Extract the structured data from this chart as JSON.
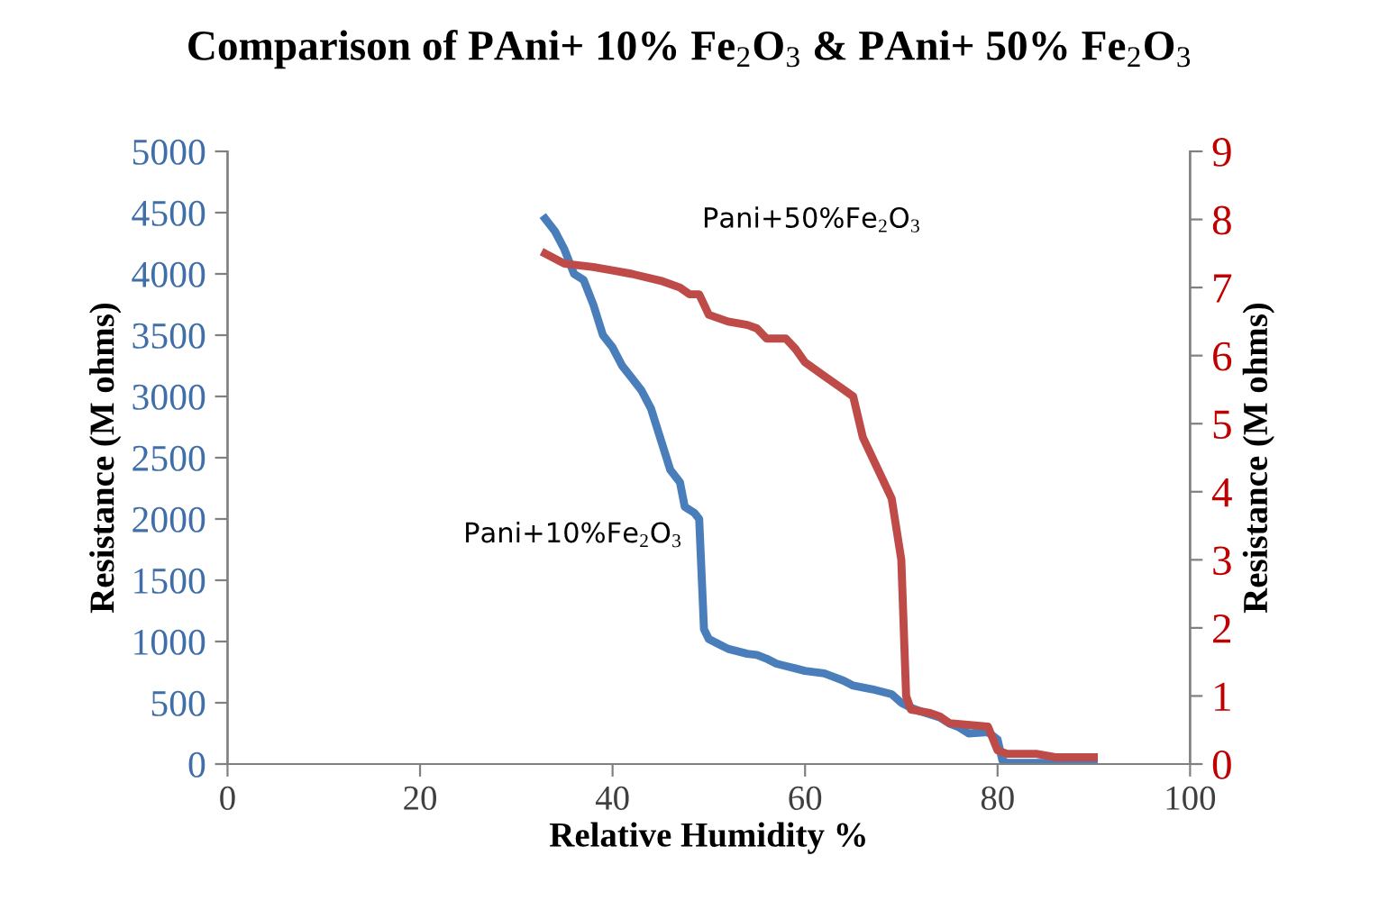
{
  "chart_data": {
    "type": "line",
    "title": "Comparison of PAni+ 10% Fe$_{2}$O$_{3}$ & PAni+ 50% Fe$_{2}$O$_{3}$",
    "xlabel": "Relative Humidity %",
    "ylabel": "Resistance (M ohms)",
    "y2label": "Resistance (M ohms)",
    "xlim": [
      0,
      100
    ],
    "xticks": [
      0,
      20,
      40,
      60,
      80,
      100
    ],
    "ylim": [
      0,
      5000
    ],
    "yticks": [
      0,
      500,
      1000,
      1500,
      2000,
      2500,
      3000,
      3500,
      4000,
      4500,
      5000
    ],
    "y2lim": [
      0,
      9
    ],
    "y2ticks": [
      0,
      1,
      2,
      3,
      4,
      5,
      6,
      7,
      8,
      9
    ],
    "grid": false,
    "legend": false,
    "marker": "none",
    "line_style": "solid",
    "series": [
      {
        "name": "Pani+10%Fe$_{2}$O$_{3}$",
        "color": "#4a7ebb",
        "x": [
          33,
          34,
          35,
          36,
          37,
          38,
          39,
          40,
          41,
          42,
          43,
          44,
          45,
          46,
          47,
          47.5,
          48.5,
          49,
          49.5,
          50,
          51,
          52,
          53,
          54,
          55,
          56,
          57,
          58,
          59,
          60,
          62,
          63,
          64,
          65,
          67,
          68,
          69,
          70,
          71,
          72,
          74,
          75,
          76,
          77,
          79,
          80,
          80.5,
          81,
          90
        ],
        "values": [
          4450,
          4350,
          4200,
          4000,
          3950,
          3750,
          3500,
          3400,
          3250,
          3150,
          3050,
          2900,
          2650,
          2400,
          2300,
          2100,
          2050,
          2000,
          1100,
          1020,
          980,
          940,
          920,
          900,
          890,
          860,
          820,
          800,
          780,
          760,
          740,
          710,
          680,
          640,
          610,
          590,
          570,
          500,
          460,
          430,
          380,
          330,
          300,
          250,
          260,
          200,
          30,
          10,
          10
        ]
      },
      {
        "name": "Pani+50%Fe$_{2}$O$_{3}$",
        "color": "#be4b48",
        "axis": "y2",
        "x": [
          33,
          35,
          38,
          40,
          42,
          45,
          47,
          48,
          49,
          50,
          52,
          54,
          55,
          56,
          58,
          59,
          60,
          62,
          64,
          65,
          66,
          67,
          68,
          69,
          70,
          70.5,
          71,
          73,
          74,
          75,
          79,
          80,
          81,
          84,
          86,
          90
        ],
        "values": [
          7.5,
          7.35,
          7.3,
          7.25,
          7.2,
          7.1,
          7.0,
          6.9,
          6.9,
          6.6,
          6.5,
          6.45,
          6.4,
          6.25,
          6.25,
          6.1,
          5.9,
          5.7,
          5.5,
          5.4,
          4.8,
          4.5,
          4.2,
          3.9,
          3.0,
          1.0,
          0.8,
          0.75,
          0.7,
          0.6,
          0.55,
          0.2,
          0.15,
          0.15,
          0.1,
          0.1
        ]
      }
    ]
  }
}
